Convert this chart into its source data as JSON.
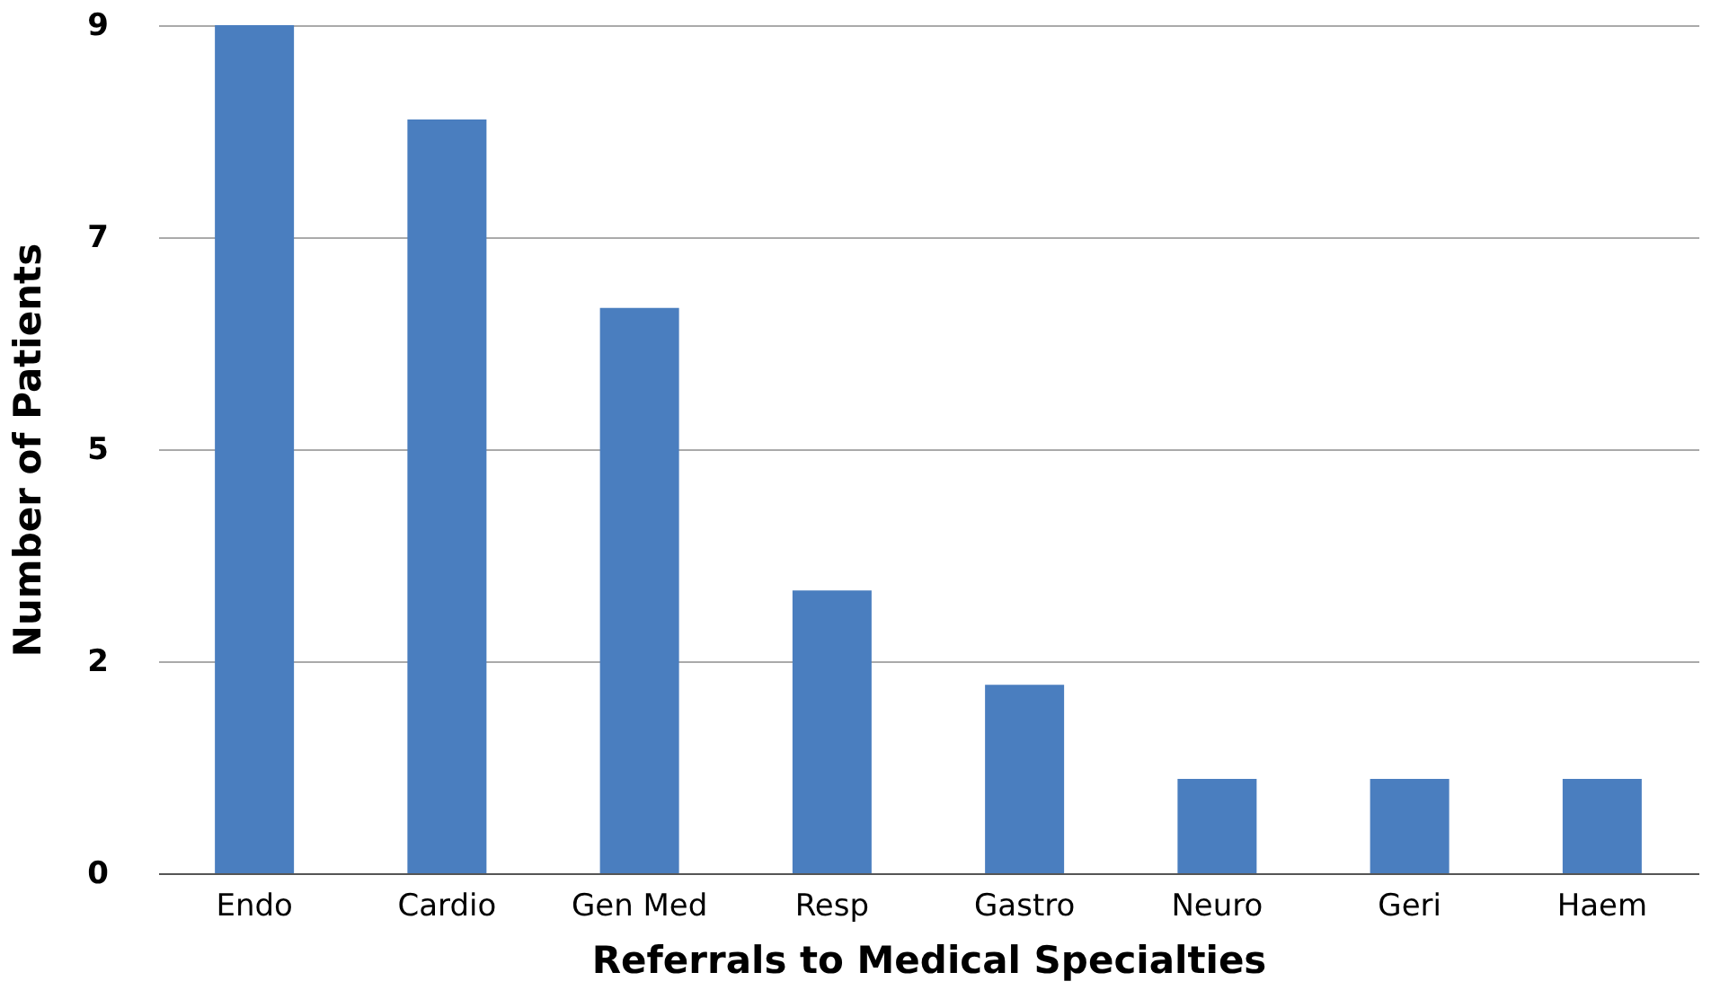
{
  "chart_data": {
    "type": "bar",
    "xlabel": "Referrals to Medical Specialties",
    "ylabel": "Number of Patients",
    "categories": [
      "Endo",
      "Cardio",
      "Gen Med",
      "Resp",
      "Gastro",
      "Neuro",
      "Geri",
      "Haem"
    ],
    "values": [
      9,
      8,
      6,
      3,
      2,
      1,
      1,
      1
    ],
    "color": "#4a7ebf",
    "ylim": [
      0,
      9
    ],
    "yticks": [
      0,
      {
        "value": 2.25,
        "label": "2"
      },
      {
        "value": 4.5,
        "label": "5"
      },
      {
        "value": 6.75,
        "label": "7"
      },
      9
    ],
    "grid": "y"
  }
}
